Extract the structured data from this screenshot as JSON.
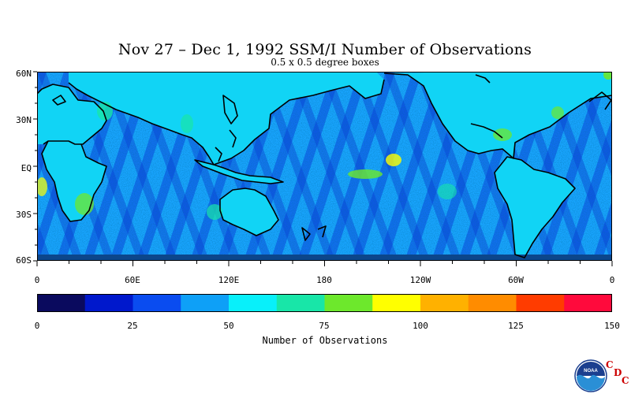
{
  "title": "Nov 27 – Dec 1, 1992 SSM/I Number of Observations",
  "subtitle": "0.5 x 0.5 degree boxes",
  "map": {
    "lat_labels": [
      "60N",
      "30N",
      "EQ",
      "30S",
      "60S"
    ],
    "lon_labels": [
      "0",
      "60E",
      "120E",
      "180",
      "120W",
      "60W",
      "0"
    ],
    "colors": {
      "ocean_base": "#19a5ff",
      "land": "#11d4f5",
      "coast": "#000000"
    }
  },
  "colorbar": {
    "colors": [
      "#0a0a5e",
      "#0018cc",
      "#0a4cf0",
      "#0ea0f7",
      "#08f0fa",
      "#18e6a8",
      "#6de82c",
      "#ffff00",
      "#ffb100",
      "#ff8c00",
      "#ff3c00",
      "#ff0a3c"
    ],
    "tick_labels": [
      "0",
      "25",
      "50",
      "75",
      "100",
      "125",
      "150"
    ],
    "title": "Number of Observations"
  },
  "logo": {
    "badge_text": "NOAA",
    "letters": [
      "C",
      "D",
      "C"
    ]
  }
}
